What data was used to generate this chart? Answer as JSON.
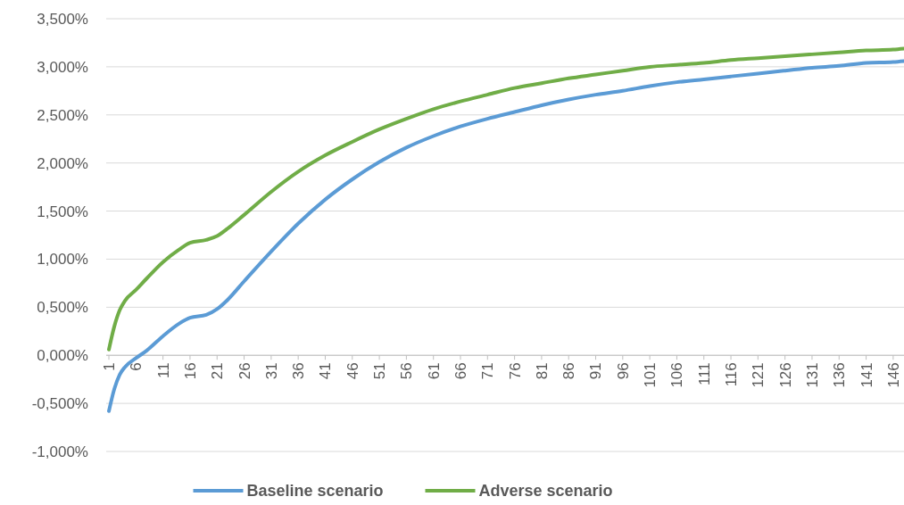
{
  "chart_data": {
    "type": "line",
    "legend": "bottom",
    "grid": "y",
    "line_style": "solid",
    "marker": "none",
    "xlim": [
      0.5,
      148
    ],
    "xticks": [
      1,
      6,
      11,
      16,
      21,
      26,
      31,
      36,
      41,
      46,
      51,
      56,
      61,
      66,
      71,
      76,
      81,
      86,
      91,
      96,
      101,
      106,
      111,
      116,
      121,
      126,
      131,
      136,
      141,
      146
    ],
    "ylim": [
      -1,
      3.5
    ],
    "yticks": [
      {
        "value": -1,
        "label": "-1,000%"
      },
      {
        "value": -0.5,
        "label": "-0,500%"
      },
      {
        "value": 0,
        "label": "0,000%"
      },
      {
        "value": 0.5,
        "label": "0,500%"
      },
      {
        "value": 1,
        "label": "1,000%"
      },
      {
        "value": 1.5,
        "label": "1,500%"
      },
      {
        "value": 2,
        "label": "2,000%"
      },
      {
        "value": 2.5,
        "label": "2,500%"
      },
      {
        "value": 3,
        "label": "3,000%"
      },
      {
        "value": 3.5,
        "label": "3,500%"
      }
    ],
    "x": [
      1,
      2,
      3,
      4,
      6,
      8,
      11,
      14,
      16,
      19,
      21,
      23,
      26,
      31,
      36,
      41,
      46,
      51,
      56,
      61,
      66,
      71,
      76,
      81,
      86,
      91,
      96,
      101,
      106,
      111,
      116,
      121,
      126,
      131,
      136,
      141,
      146,
      148
    ],
    "series": [
      {
        "name": "Baseline scenario",
        "color": "#5b9bd5",
        "values": [
          -0.58,
          -0.35,
          -0.2,
          -0.12,
          -0.03,
          0.05,
          0.2,
          0.33,
          0.39,
          0.42,
          0.48,
          0.58,
          0.77,
          1.08,
          1.37,
          1.62,
          1.83,
          2.01,
          2.16,
          2.28,
          2.38,
          2.46,
          2.53,
          2.6,
          2.66,
          2.71,
          2.75,
          2.8,
          2.84,
          2.87,
          2.9,
          2.93,
          2.96,
          2.99,
          3.01,
          3.04,
          3.05,
          3.06
        ]
      },
      {
        "name": "Adverse scenario",
        "color": "#70ad47",
        "values": [
          0.06,
          0.3,
          0.47,
          0.57,
          0.68,
          0.8,
          0.97,
          1.1,
          1.17,
          1.2,
          1.24,
          1.32,
          1.46,
          1.7,
          1.91,
          2.08,
          2.22,
          2.35,
          2.46,
          2.56,
          2.64,
          2.71,
          2.78,
          2.83,
          2.88,
          2.92,
          2.96,
          3.0,
          3.02,
          3.04,
          3.07,
          3.09,
          3.11,
          3.13,
          3.15,
          3.17,
          3.18,
          3.19
        ]
      }
    ]
  }
}
